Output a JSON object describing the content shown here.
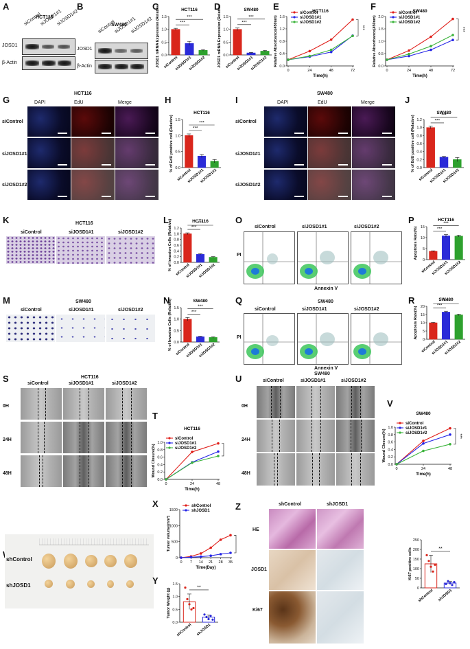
{
  "panels": {
    "A": {
      "letter": "A",
      "cell": "HCT116",
      "rows": [
        "JOSD1",
        "β-Actin"
      ],
      "lanes": [
        "siControl",
        "siJOSD1#1",
        "siJOSD1#2"
      ]
    },
    "B": {
      "letter": "B",
      "cell": "SW480",
      "rows": [
        "JOSD1",
        "β-Actin"
      ],
      "lanes": [
        "siControl",
        "siJOSD1#1",
        "siJOSD1#2"
      ]
    },
    "C": {
      "letter": "C",
      "title": "HCT116",
      "ylabel": "JOSD1 mRNA Expression (Relative)"
    },
    "D": {
      "letter": "D",
      "title": "SW480",
      "ylabel": "JOSD1 mRNA Expression (Relative)"
    },
    "E": {
      "letter": "E",
      "title": "HCT116"
    },
    "F": {
      "letter": "F",
      "title": "SW480"
    },
    "G": {
      "letter": "G",
      "title": "HCT116",
      "cols": [
        "DAPI",
        "EdU",
        "Merge"
      ],
      "rows": [
        "siControl",
        "siJOSD1#1",
        "siJOSD1#2"
      ]
    },
    "H": {
      "letter": "H",
      "title": "HCT116",
      "ylabel": "% of EdU positive cell (Relative)"
    },
    "I": {
      "letter": "I",
      "title": "SW480",
      "cols": [
        "DAPI",
        "EdU",
        "Merge"
      ],
      "rows": [
        "siControl",
        "siJOSD1#1",
        "siJOSD1#2"
      ]
    },
    "J": {
      "letter": "J",
      "title": "SW480",
      "ylabel": "% of EdU positive cell (Relative)"
    },
    "K": {
      "letter": "K",
      "title": "HCT116",
      "cols": [
        "siControl",
        "siJOSD1#1",
        "siJOSD1#2"
      ]
    },
    "L": {
      "letter": "L",
      "title": "HCT116",
      "ylabel": "% of Invasion Cells (Relative)"
    },
    "M": {
      "letter": "M",
      "title": "SW480",
      "cols": [
        "siControl",
        "siJOSD1#1",
        "siJOSD1#2"
      ]
    },
    "N": {
      "letter": "N",
      "title": "SW480",
      "ylabel": "% of Invasion Cells (Relative)"
    },
    "O": {
      "letter": "O",
      "title": "HCT116",
      "cols": [
        "siControl",
        "siJOSD1#1",
        "siJOSD1#2"
      ],
      "xlabel": "Annexin V",
      "ylabel": "PI"
    },
    "P": {
      "letter": "P",
      "title": "HCT116",
      "ylabel": "Apoptosis Rate(%)"
    },
    "Q": {
      "letter": "Q",
      "title": "SW480",
      "cols": [
        "siControl",
        "siJOSD1#1",
        "siJOSD1#2"
      ],
      "xlabel": "Annexin V",
      "ylabel": "PI"
    },
    "R": {
      "letter": "R",
      "title": "SW480",
      "ylabel": "Apoptosis Rate(%)"
    },
    "S": {
      "letter": "S",
      "title": "HCT116",
      "cols": [
        "siControl",
        "siJOSD1#1",
        "siJOSD1#2"
      ],
      "rows": [
        "0H",
        "24H",
        "48H"
      ]
    },
    "T": {
      "letter": "T",
      "title": "HCT116"
    },
    "U": {
      "letter": "U",
      "title": "SW480",
      "cols": [
        "siControl",
        "siJOSD1#1",
        "siJOSD1#2"
      ],
      "rows": [
        "0H",
        "24H",
        "48H"
      ]
    },
    "V": {
      "letter": "V",
      "title": "SW480"
    },
    "W": {
      "letter": "W",
      "rows": [
        "shControl",
        "shJOSD1"
      ]
    },
    "X": {
      "letter": "X"
    },
    "Y": {
      "letter": "Y"
    },
    "Z": {
      "letter": "Z",
      "cols": [
        "shControl",
        "shJOSD1"
      ],
      "rows": [
        "HE",
        "JOSD1",
        "Ki67"
      ]
    }
  },
  "sig": {
    "three": "***",
    "two": "**"
  },
  "colors": {
    "red": "#e0201b",
    "blue": "#2424e6",
    "green": "#3cb43c",
    "bar_red": "#d9261c",
    "bar_blue": "#2b2bd8",
    "bar_green": "#2ea12e"
  },
  "chart_data": [
    {
      "id": "C",
      "type": "bar",
      "categories": [
        "siControl",
        "siJOSD1#1",
        "siJOSD1#2"
      ],
      "values": [
        1.0,
        0.45,
        0.18
      ],
      "errors": [
        0.04,
        0.08,
        0.03
      ],
      "ylim": [
        0,
        1.5
      ],
      "yticks": [
        0.0,
        0.5,
        1.0,
        1.5
      ],
      "title": "HCT116",
      "ylabel": "JOSD1 mRNA Expression (Relative)"
    },
    {
      "id": "D",
      "type": "bar",
      "categories": [
        "siControl",
        "siJOSD1#1",
        "siJOSD1#2"
      ],
      "values": [
        1.0,
        0.08,
        0.15
      ],
      "errors": [
        0.05,
        0.02,
        0.03
      ],
      "ylim": [
        0,
        1.5
      ],
      "yticks": [
        0.0,
        0.5,
        1.0,
        1.5
      ],
      "title": "SW480",
      "ylabel": "JOSD1 mRNA Expression (Relative)"
    },
    {
      "id": "E",
      "type": "line",
      "x": [
        0,
        24,
        48,
        72
      ],
      "xlabel": "Time(h)",
      "ylabel": "Relative Absorbance(450nm)",
      "ylim": [
        0,
        1.6
      ],
      "yticks": [
        0.0,
        0.4,
        0.8,
        1.2,
        1.6
      ],
      "title": "HCT116",
      "series": [
        {
          "name": "siControl",
          "values": [
            0.2,
            0.48,
            0.85,
            1.5
          ]
        },
        {
          "name": "siJOSD1#1",
          "values": [
            0.2,
            0.3,
            0.45,
            0.98
          ]
        },
        {
          "name": "siJOSD1#2",
          "values": [
            0.2,
            0.32,
            0.52,
            0.97
          ]
        }
      ]
    },
    {
      "id": "F",
      "type": "line",
      "x": [
        0,
        24,
        48,
        72
      ],
      "xlabel": "Time(h)",
      "ylabel": "Relative Absorbance(450nm)",
      "ylim": [
        0,
        2.0
      ],
      "yticks": [
        0.0,
        0.5,
        1.0,
        1.5,
        2.0
      ],
      "title": "SW480",
      "series": [
        {
          "name": "siControl",
          "values": [
            0.25,
            0.62,
            1.18,
            1.9
          ]
        },
        {
          "name": "siJOSD1#1",
          "values": [
            0.25,
            0.4,
            0.65,
            1.05
          ]
        },
        {
          "name": "siJOSD1#2",
          "values": [
            0.25,
            0.48,
            0.8,
            1.25
          ]
        }
      ]
    },
    {
      "id": "H",
      "type": "bar",
      "categories": [
        "siControl",
        "siJOSD1#1",
        "siJOSD1#2"
      ],
      "values": [
        1.0,
        0.36,
        0.2
      ],
      "errors": [
        0.05,
        0.05,
        0.05
      ],
      "ylim": [
        0,
        1.5
      ],
      "yticks": [
        0.0,
        0.5,
        1.0,
        1.5
      ],
      "title": "HCT116",
      "ylabel": "% of EdU positive cell (Relative)"
    },
    {
      "id": "J",
      "type": "bar",
      "categories": [
        "siControl",
        "siJOSD1#1",
        "siJOSD1#2"
      ],
      "values": [
        1.0,
        0.26,
        0.2
      ],
      "errors": [
        0.03,
        0.02,
        0.05
      ],
      "ylim": [
        0,
        1.2
      ],
      "yticks": [
        0.0,
        0.2,
        0.4,
        0.6,
        0.8,
        1.0,
        1.2
      ],
      "title": "SW480",
      "ylabel": "% of EdU positive cell (Relative)"
    },
    {
      "id": "L",
      "type": "bar",
      "categories": [
        "siControl",
        "siJOSD1#1",
        "siJOSD1#2"
      ],
      "values": [
        1.0,
        0.28,
        0.18
      ],
      "errors": [
        0.03,
        0.02,
        0.02
      ],
      "ylim": [
        0,
        1.2
      ],
      "yticks": [
        0.0,
        0.2,
        0.4,
        0.6,
        0.8,
        1.0,
        1.2
      ],
      "title": "HCT116",
      "ylabel": "% of Invasion Cells (Relative)"
    },
    {
      "id": "N",
      "type": "bar",
      "categories": [
        "siControl",
        "siJOSD1#1",
        "siJOSD1#2"
      ],
      "values": [
        1.0,
        0.23,
        0.2
      ],
      "errors": [
        0.07,
        0.02,
        0.03
      ],
      "ylim": [
        0,
        1.5
      ],
      "yticks": [
        0.0,
        0.5,
        1.0,
        1.5
      ],
      "title": "SW480",
      "ylabel": "% of Invasion Cells (Relative)"
    },
    {
      "id": "P",
      "type": "bar",
      "categories": [
        "siControl",
        "siJOSD1#1",
        "siJOSD1#2"
      ],
      "values": [
        3.8,
        10.8,
        10.7
      ],
      "errors": [
        0.2,
        0.6,
        0.4
      ],
      "ylim": [
        0,
        15
      ],
      "yticks": [
        0,
        5,
        10,
        15
      ],
      "title": "HCT116",
      "ylabel": "Apoptosis Rate(%)"
    },
    {
      "id": "R",
      "type": "bar",
      "categories": [
        "siControl",
        "siJOSD1#1",
        "siJOSD1#2"
      ],
      "values": [
        10.0,
        16.5,
        14.8
      ],
      "errors": [
        0.2,
        0.5,
        0.4
      ],
      "ylim": [
        0,
        20
      ],
      "yticks": [
        0,
        5,
        10,
        15,
        20
      ],
      "title": "SW480",
      "ylabel": "Apoptosis Rate(%)"
    },
    {
      "id": "T",
      "type": "line",
      "x": [
        0,
        24,
        48
      ],
      "xlabel": "Time(h)",
      "ylabel": "Wound Closure(%)",
      "ylim": [
        0,
        1.0
      ],
      "yticks": [
        0.0,
        0.2,
        0.4,
        0.6,
        0.8,
        1.0
      ],
      "title": "HCT116",
      "series": [
        {
          "name": "siControl",
          "values": [
            0.0,
            0.74,
            0.97
          ]
        },
        {
          "name": "siJOSD1#1",
          "values": [
            0.0,
            0.46,
            0.75
          ]
        },
        {
          "name": "siJOSD1#2",
          "values": [
            0.0,
            0.45,
            0.63
          ]
        }
      ]
    },
    {
      "id": "V",
      "type": "line",
      "x": [
        0,
        24,
        48
      ],
      "xlabel": "Time(h)",
      "ylabel": "Wound Closure(%)",
      "ylim": [
        0,
        1.0
      ],
      "yticks": [
        0.0,
        0.2,
        0.4,
        0.6,
        0.8,
        1.0
      ],
      "title": "SW480",
      "series": [
        {
          "name": "siControl",
          "values": [
            0.0,
            0.63,
            0.97
          ]
        },
        {
          "name": "siJOSD1#1",
          "values": [
            0.0,
            0.56,
            0.8
          ]
        },
        {
          "name": "siJOSD1#2",
          "values": [
            0.0,
            0.36,
            0.54
          ]
        }
      ]
    },
    {
      "id": "X",
      "type": "line",
      "x": [
        0,
        7,
        14,
        21,
        28,
        35
      ],
      "xlabel": "Time(Day)",
      "ylabel": "Tumor volume(mm³)",
      "ylim": [
        0,
        1500
      ],
      "yticks": [
        0,
        500,
        1000,
        1500
      ],
      "series": [
        {
          "name": "shControl",
          "values": [
            0,
            40,
            130,
            310,
            560,
            700
          ]
        },
        {
          "name": "shJOSD1",
          "values": [
            0,
            15,
            30,
            60,
            110,
            150
          ]
        }
      ]
    },
    {
      "id": "Y",
      "type": "bar",
      "categories": [
        "shControl",
        "shJOSD1"
      ],
      "values": [
        0.8,
        0.2
      ],
      "errors": [
        0.3,
        0.08
      ],
      "points": [
        [
          1.35,
          0.9,
          0.7,
          0.5,
          0.55
        ],
        [
          0.3,
          0.2,
          0.12,
          0.25,
          0.1
        ]
      ],
      "ylim": [
        0,
        1.5
      ],
      "yticks": [
        0.0,
        0.5,
        1.0,
        1.5
      ],
      "ylabel": "Tumor Weight (g)"
    },
    {
      "id": "Zbar",
      "type": "bar",
      "categories": [
        "shControl",
        "shJOSD1"
      ],
      "values": [
        125,
        25
      ],
      "errors": [
        45,
        8
      ],
      "points": [
        [
          170,
          140,
          110,
          85,
          120
        ],
        [
          20,
          35,
          25,
          15,
          30
        ]
      ],
      "ylim": [
        0,
        250
      ],
      "yticks": [
        0,
        50,
        100,
        150,
        200,
        250
      ],
      "ylabel": "Ki67 positive cells"
    }
  ]
}
